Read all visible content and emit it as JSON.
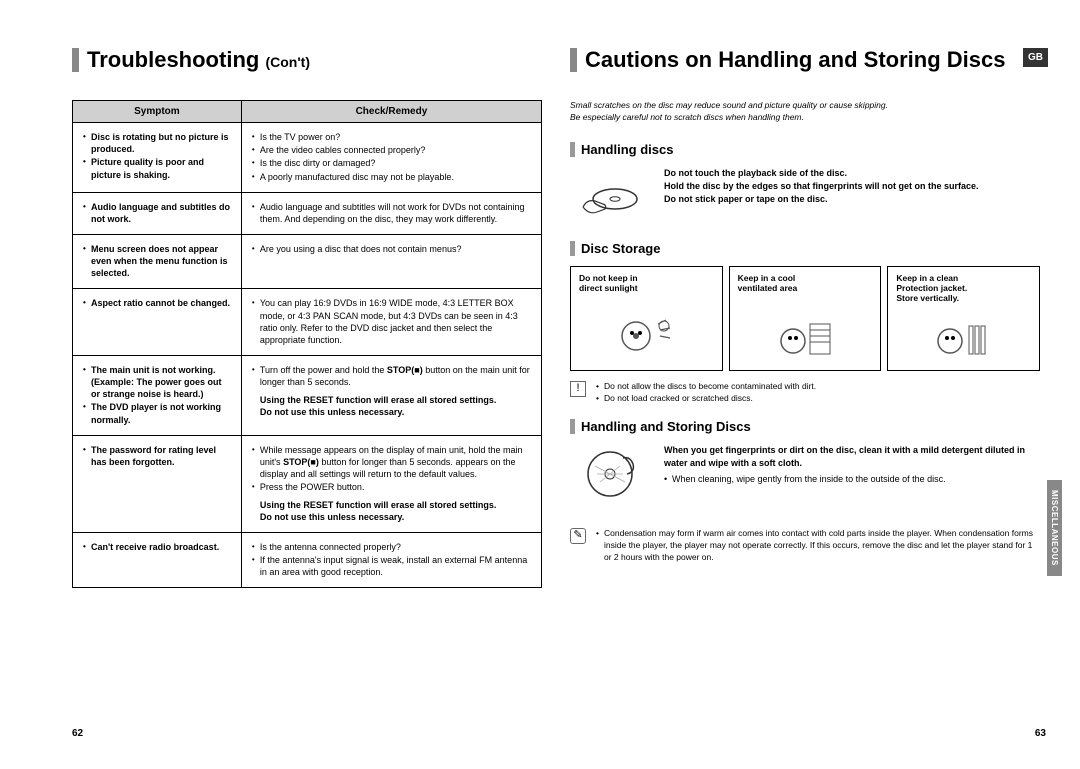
{
  "leftPage": {
    "title": "Troubleshooting",
    "titleCont": "(Con't)",
    "tableHeaders": [
      "Symptom",
      "Check/Remedy"
    ],
    "rows": [
      {
        "symptom": [
          "Disc is rotating but no picture is produced.",
          "Picture quality is poor and picture is shaking."
        ],
        "remedy": [
          "Is the TV power on?",
          "Are the video cables connected properly?",
          "Is the disc dirty or damaged?",
          "A poorly manufactured disc may not be playable."
        ]
      },
      {
        "symptom": [
          "Audio language and subtitles do not work."
        ],
        "remedy": [
          "Audio language and subtitles will not work for DVDs not containing them. And depending on the disc, they may work differently."
        ]
      },
      {
        "symptom": [
          "Menu screen does not appear even when the menu function is selected."
        ],
        "remedy": [
          "Are you using a disc that does not contain menus?"
        ]
      },
      {
        "symptom": [
          "Aspect ratio cannot be changed."
        ],
        "remedy": [
          "You can play 16:9 DVDs in 16:9 WIDE mode, 4:3 LETTER BOX mode, or 4:3 PAN SCAN mode, but 4:3 DVDs can be seen in 4:3 ratio only. Refer to the DVD disc jacket and then select the appropriate function."
        ]
      },
      {
        "symptom": [
          "The main unit is not working. (Example: The power goes out or strange noise is heard.)",
          "The DVD player is not working normally."
        ],
        "remedy": [
          "Turn off the power and hold the <b>STOP(■)</b> button on the main unit for longer than 5 seconds."
        ],
        "remedyBold": [
          "Using the RESET function will erase all stored settings.",
          "Do not use this unless necessary."
        ]
      },
      {
        "symptom": [
          "The password for rating level has been forgotten."
        ],
        "remedy": [
          "While <NO DISC> message appears on the display of main unit, hold the main unit's <b>STOP(■)</b> button for longer than 5 seconds. <INITIAL> appears on the display and all settings will return to the default values.",
          "Press the POWER button."
        ],
        "remedyBold": [
          "Using the RESET function will erase all stored settings.",
          "Do not use this unless necessary."
        ]
      },
      {
        "symptom": [
          "Can't receive radio broadcast."
        ],
        "remedy": [
          "Is the antenna connected properly?",
          "If the antenna's input signal is weak, install an external FM antenna in an area with good reception."
        ]
      }
    ],
    "pageNum": "62"
  },
  "rightPage": {
    "title": "Cautions on Handling and Storing Discs",
    "gb": "GB",
    "intro": [
      "Small scratches on the disc may reduce sound and picture quality or cause skipping.",
      "Be especially careful not to scratch discs when handling them."
    ],
    "handlingTitle": "Handling discs",
    "handlingText": [
      "Do not touch the playback side of the disc.",
      "Hold the disc by the edges so that fingerprints will not get on the surface.",
      "Do not stick paper or tape on the disc."
    ],
    "storageTitle": "Disc Storage",
    "storageCells": [
      [
        "Do not keep in",
        "direct sunlight"
      ],
      [
        "Keep in a cool",
        "ventilated area"
      ],
      [
        "Keep in a clean",
        "Protection jacket.",
        "Store vertically."
      ]
    ],
    "storageNote": [
      "Do not allow the discs to become contaminated with dirt.",
      "Do not load cracked or scratched discs."
    ],
    "handlingStoringTitle": "Handling and Storing Discs",
    "handlingStoringBold": "When you get fingerprints or dirt on the disc, clean it with a mild detergent diluted in water and wipe with a soft cloth.",
    "handlingStoringText": "When cleaning, wipe gently from the inside to the outside of the disc.",
    "condensationNote": "Condensation may form if warm air comes into contact with cold parts inside the player. When condensation forms inside the player, the player may not operate correctly. If this occurs, remove the disc and let the player stand for 1 or 2 hours with the power on.",
    "sideTab": "MISCELLANEOUS",
    "pageNum": "63"
  }
}
